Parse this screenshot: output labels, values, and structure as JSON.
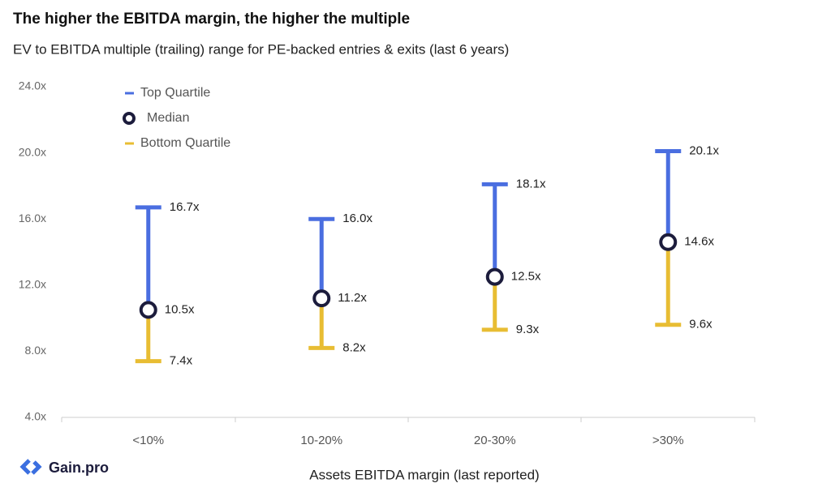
{
  "chart_data": {
    "type": "range",
    "title": "The higher the EBITDA margin, the higher the multiple",
    "subtitle": "EV to EBITDA multiple (trailing) range for PE-backed entries & exits (last 6 years)",
    "x_label": "Assets EBITDA margin (last reported)",
    "categories": [
      "<10%",
      "10-20%",
      "20-30%",
      ">30%"
    ],
    "series": [
      {
        "name": "Top Quartile",
        "color": "#4a6ee0",
        "values": [
          16.7,
          16.0,
          18.1,
          20.1
        ],
        "value_labels": [
          "16.7x",
          "16.0x",
          "18.1x",
          "20.1x"
        ]
      },
      {
        "name": "Median",
        "color": "#1c1c3c",
        "values": [
          10.5,
          11.2,
          12.5,
          14.6
        ],
        "value_labels": [
          "10.5x",
          "11.2x",
          "12.5x",
          "14.6x"
        ]
      },
      {
        "name": "Bottom Quartile",
        "color": "#e8bd33",
        "values": [
          7.4,
          8.2,
          9.3,
          9.6
        ],
        "value_labels": [
          "7.4x",
          "8.2x",
          "9.3x",
          "9.6x"
        ]
      }
    ],
    "ylim": [
      4,
      24
    ],
    "yticks": [
      {
        "value": 4,
        "label": "4.0x"
      },
      {
        "value": 8,
        "label": "8.0x"
      },
      {
        "value": 12,
        "label": "12.0x"
      },
      {
        "value": 16,
        "label": "16.0x"
      },
      {
        "value": 20,
        "label": "20.0x"
      },
      {
        "value": 24,
        "label": "24.0x"
      }
    ],
    "grid": false,
    "legend": "top-left"
  },
  "brand": "Gain.pro"
}
